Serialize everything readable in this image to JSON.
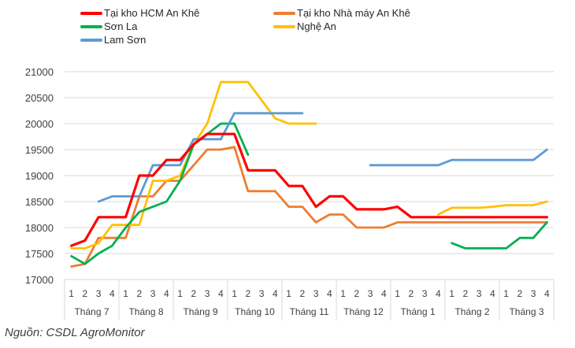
{
  "chart_data": {
    "type": "line",
    "title": "",
    "xlabel": "",
    "ylabel": "",
    "ylim": [
      17000,
      21000
    ],
    "yticks": [
      17000,
      17500,
      18000,
      18500,
      19000,
      19500,
      20000,
      20500,
      21000
    ],
    "grid": true,
    "legend_position": "top",
    "months": [
      "Tháng 7",
      "Tháng 8",
      "Tháng 9",
      "Tháng 10",
      "Tháng 11",
      "Tháng 12",
      "Tháng 1",
      "Tháng 2",
      "Tháng 3"
    ],
    "weeks": [
      "1",
      "2",
      "3",
      "4"
    ],
    "categories": [
      "T7-1",
      "T7-2",
      "T7-3",
      "T7-4",
      "T8-1",
      "T8-2",
      "T8-3",
      "T8-4",
      "T9-1",
      "T9-2",
      "T9-3",
      "T9-4",
      "T10-1",
      "T10-2",
      "T10-3",
      "T10-4",
      "T11-1",
      "T11-2",
      "T11-3",
      "T11-4",
      "T12-1",
      "T12-2",
      "T12-3",
      "T12-4",
      "T1-1",
      "T1-2",
      "T1-3",
      "T1-4",
      "T2-1",
      "T2-2",
      "T2-3",
      "T2-4",
      "T3-1",
      "T3-2",
      "T3-3",
      "T3-4"
    ],
    "series": [
      {
        "name": "Tại kho HCM An Khê",
        "color": "#ff0000",
        "values": [
          17650,
          17750,
          18200,
          18200,
          18200,
          19000,
          19000,
          19300,
          19300,
          19600,
          19800,
          19800,
          19800,
          19100,
          19100,
          19100,
          18800,
          18800,
          18400,
          18600,
          18600,
          18350,
          18350,
          18350,
          18400,
          18200,
          18200,
          18200,
          18200,
          18200,
          18200,
          18200,
          18200,
          18200,
          18200,
          18200
        ]
      },
      {
        "name": "Tại kho Nhà máy An Khê",
        "color": "#ed7d31",
        "values": [
          17250,
          17300,
          17800,
          17800,
          17800,
          18600,
          18600,
          18900,
          18900,
          19200,
          19500,
          19500,
          19550,
          18700,
          18700,
          18700,
          18400,
          18400,
          18100,
          18250,
          18250,
          18000,
          18000,
          18000,
          18100,
          18100,
          18100,
          18100,
          18100,
          18100,
          18100,
          18100,
          18100,
          18100,
          18100,
          18100
        ]
      },
      {
        "name": "Sơn La",
        "color": "#00b050",
        "values": [
          17450,
          17300,
          17500,
          17650,
          18000,
          18300,
          18400,
          18500,
          18900,
          19600,
          19800,
          20000,
          20000,
          19400,
          null,
          null,
          null,
          null,
          null,
          null,
          null,
          null,
          null,
          null,
          null,
          null,
          null,
          null,
          17700,
          17600,
          17600,
          17600,
          17600,
          17800,
          17800,
          18100
        ]
      },
      {
        "name": "Nghệ An",
        "color": "#ffc000",
        "values": [
          17600,
          17600,
          17700,
          18050,
          18050,
          18050,
          18900,
          18900,
          19000,
          19600,
          20000,
          20800,
          20800,
          20800,
          20450,
          20100,
          20000,
          20000,
          20000,
          null,
          null,
          null,
          null,
          null,
          null,
          null,
          null,
          18250,
          18380,
          18380,
          18380,
          18400,
          18430,
          18430,
          18430,
          18500
        ]
      },
      {
        "name": "Lam Sơn",
        "color": "#5b9bd5",
        "values": [
          null,
          null,
          18500,
          18600,
          18600,
          18600,
          19200,
          19200,
          19200,
          19700,
          19700,
          19700,
          20200,
          20200,
          20200,
          20200,
          20200,
          20200,
          null,
          null,
          null,
          null,
          19200,
          19200,
          19200,
          19200,
          19200,
          19200,
          19300,
          19300,
          19300,
          19300,
          19300,
          19300,
          19300,
          19500
        ]
      }
    ]
  },
  "legend": [
    {
      "label": "Tại kho HCM An Khê",
      "color": "#ff0000"
    },
    {
      "label": "Tại kho Nhà máy An Khê",
      "color": "#ed7d31"
    },
    {
      "label": "Sơn La",
      "color": "#00b050"
    },
    {
      "label": "Nghệ An",
      "color": "#ffc000"
    },
    {
      "label": "Lam Sơn",
      "color": "#5b9bd5"
    }
  ],
  "source": "Nguồn: CSDL AgroMonitor"
}
